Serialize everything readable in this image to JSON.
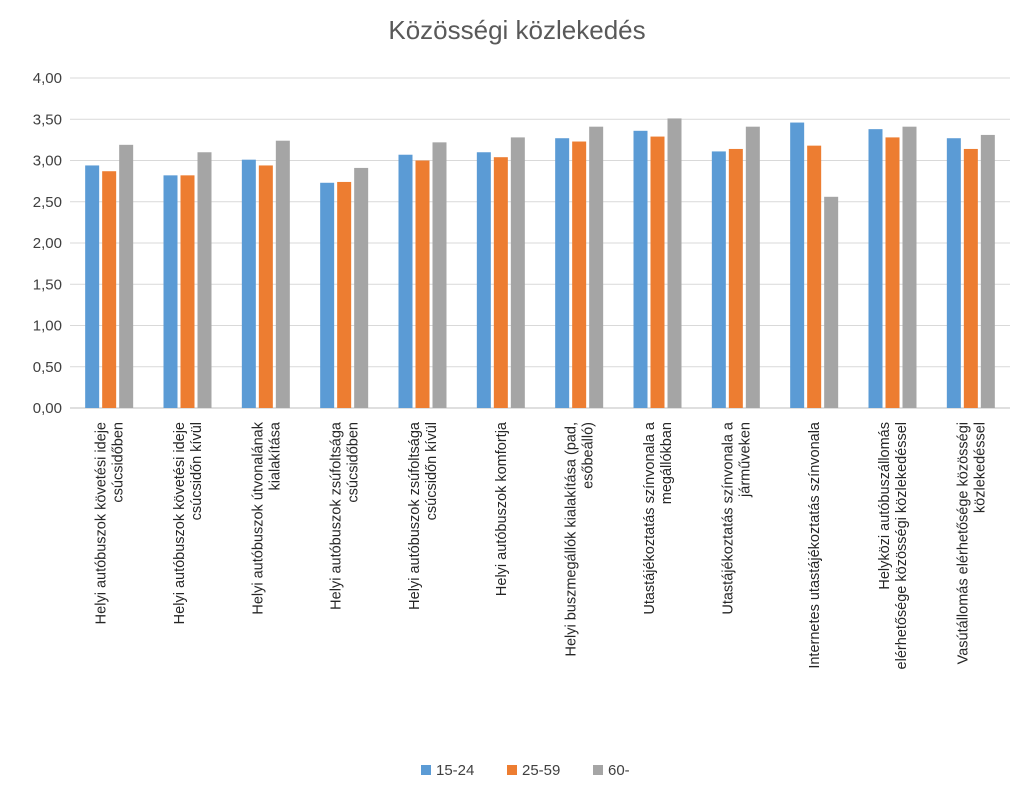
{
  "chart_data": {
    "type": "bar",
    "title": "Közösségi közlekedés",
    "xlabel": "",
    "ylabel": "",
    "ylim": [
      0,
      4
    ],
    "ytick_step": 0.5,
    "ytick_labels": [
      "0,00",
      "0,50",
      "1,00",
      "1,50",
      "2,00",
      "2,50",
      "3,00",
      "3,50",
      "4,00"
    ],
    "grid": true,
    "legend_position": "bottom",
    "categories": [
      [
        "Helyi autóbuszok követési ideje",
        "csúcsidőben"
      ],
      [
        "Helyi autóbuszok követési ideje",
        "csúcsidőn kívül"
      ],
      [
        "Helyi autóbuszok útvonalának",
        "kialakítása"
      ],
      [
        "Helyi autóbuszok zsúfoltsága",
        "csúcsidőben"
      ],
      [
        "Helyi autóbuszok zsúfoltsága",
        "csúcsidőn kívül"
      ],
      [
        "Helyi autóbuszok komfortja"
      ],
      [
        "Helyi buszmegállók kialakítása (pad,",
        "esőbeálló)"
      ],
      [
        "Utastájékoztatás színvonala a",
        "megállókban"
      ],
      [
        "Utastájékoztatás színvonala a",
        "járműveken"
      ],
      [
        "Internetes utastájékoztatás színvonala"
      ],
      [
        "Helyközi autóbuszállomás",
        "elérhetősége közösségi közlekedéssel"
      ],
      [
        "Vasútállomás elérhetősége közösségi",
        "közlekedéssel"
      ]
    ],
    "series": [
      {
        "name": "15-24",
        "color": "#5b9bd5",
        "values": [
          2.94,
          2.82,
          3.01,
          2.73,
          3.07,
          3.1,
          3.27,
          3.36,
          3.11,
          3.46,
          3.38,
          3.27
        ]
      },
      {
        "name": "25-59",
        "color": "#ed7d31",
        "values": [
          2.87,
          2.82,
          2.94,
          2.74,
          3.0,
          3.04,
          3.23,
          3.29,
          3.14,
          3.18,
          3.28,
          3.14
        ]
      },
      {
        "name": "60-",
        "color": "#a5a5a5",
        "values": [
          3.19,
          3.1,
          3.24,
          2.91,
          3.22,
          3.28,
          3.41,
          3.51,
          3.41,
          2.56,
          3.41,
          3.31
        ]
      }
    ]
  }
}
